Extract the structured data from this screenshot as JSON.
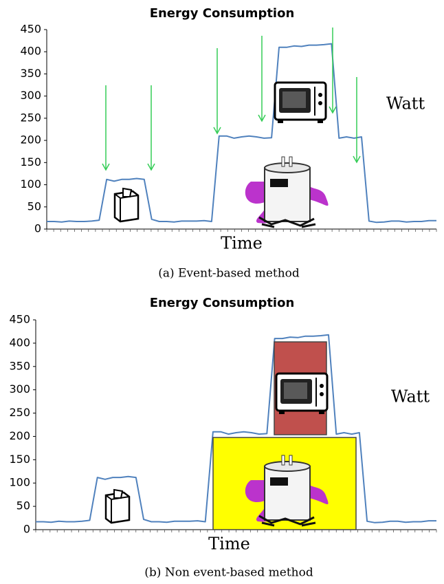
{
  "chart_data": [
    {
      "type": "line",
      "title": "Energy Consumption",
      "xlabel": "Time",
      "annotation": "Watt",
      "caption": "(a) Event-based method",
      "color": "#4f81bd",
      "values": [
        17,
        17,
        16,
        18,
        17,
        17,
        18,
        20,
        112,
        108,
        112,
        112,
        114,
        112,
        22,
        17,
        17,
        16,
        18,
        18,
        18,
        19,
        17,
        210,
        210,
        205,
        208,
        210,
        208,
        205,
        206,
        410,
        410,
        413,
        412,
        415,
        415,
        416,
        418,
        205,
        208,
        205,
        208,
        18,
        15,
        16,
        18,
        18,
        16,
        17,
        17,
        19,
        19
      ],
      "ylim": [
        0,
        450
      ],
      "yticks": [
        0,
        50,
        100,
        150,
        200,
        250,
        300,
        350,
        400,
        450
      ]
    },
    {
      "type": "line",
      "title": "Energy Consumption",
      "xlabel": "Time",
      "annotation": "Watt",
      "caption": "(b) Non event-based method",
      "color": "#4f81bd",
      "values": [
        17,
        17,
        16,
        18,
        17,
        17,
        18,
        20,
        112,
        108,
        112,
        112,
        114,
        112,
        22,
        17,
        17,
        16,
        18,
        18,
        18,
        19,
        17,
        210,
        210,
        205,
        208,
        210,
        208,
        205,
        206,
        410,
        410,
        413,
        412,
        415,
        415,
        416,
        418,
        205,
        208,
        205,
        208,
        18,
        15,
        16,
        18,
        18,
        16,
        17,
        17,
        19,
        19
      ],
      "ylim": [
        0,
        450
      ],
      "yticks": [
        0,
        50,
        100,
        150,
        200,
        250,
        300,
        350,
        400,
        450
      ]
    }
  ]
}
